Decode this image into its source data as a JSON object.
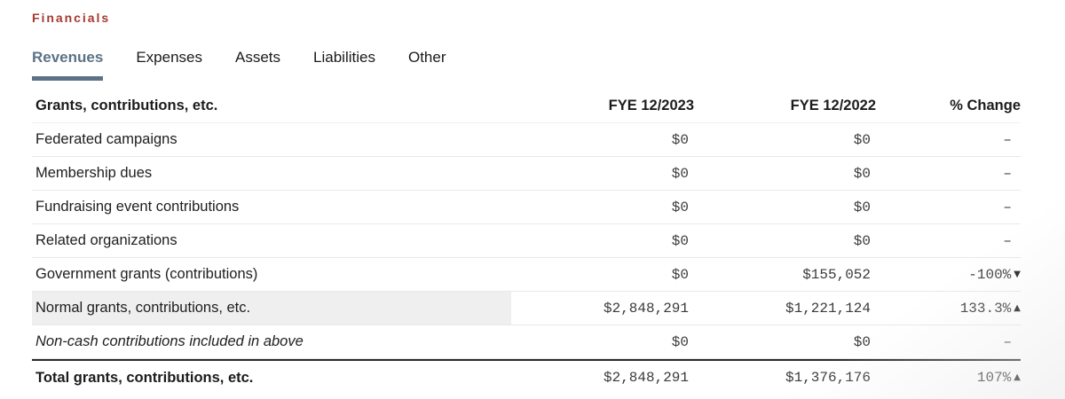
{
  "page": {
    "section_label": "Financials"
  },
  "colors": {
    "section_label_red": "#a33a30",
    "active_tab_blue": "#5c7287",
    "highlight_row_bg": "#efefef",
    "total_border": "#2b2b2b"
  },
  "tabs": [
    {
      "label": "Revenues",
      "active": true
    },
    {
      "label": "Expenses",
      "active": false
    },
    {
      "label": "Assets",
      "active": false
    },
    {
      "label": "Liabilities",
      "active": false
    },
    {
      "label": "Other",
      "active": false
    }
  ],
  "table": {
    "header": {
      "label": "Grants, contributions, etc.",
      "col_2023": "FYE 12/2023",
      "col_2022": "FYE 12/2022",
      "col_change": "% Change"
    },
    "rows": [
      {
        "label": "Federated campaigns",
        "fy2023": "$0",
        "fy2022": "$0",
        "change": "–",
        "arrow": ""
      },
      {
        "label": "Membership dues",
        "fy2023": "$0",
        "fy2022": "$0",
        "change": "–",
        "arrow": ""
      },
      {
        "label": "Fundraising event contributions",
        "fy2023": "$0",
        "fy2022": "$0",
        "change": "–",
        "arrow": ""
      },
      {
        "label": "Related organizations",
        "fy2023": "$0",
        "fy2022": "$0",
        "change": "–",
        "arrow": ""
      },
      {
        "label": "Government grants (contributions)",
        "fy2023": "$0",
        "fy2022": "$155,052",
        "change": "-100%",
        "arrow": "▼"
      },
      {
        "label": "Normal grants, contributions, etc.",
        "fy2023": "$2,848,291",
        "fy2022": "$1,221,124",
        "change": "133.3%",
        "arrow": "▲",
        "highlighted": true
      },
      {
        "label": "Non-cash contributions included in above",
        "fy2023": "$0",
        "fy2022": "$0",
        "change": "–",
        "arrow": "",
        "italic": true
      },
      {
        "label": "Total grants, contributions, etc.",
        "fy2023": "$2,848,291",
        "fy2022": "$1,376,176",
        "change": "107%",
        "arrow": "▲",
        "total": true
      }
    ]
  }
}
